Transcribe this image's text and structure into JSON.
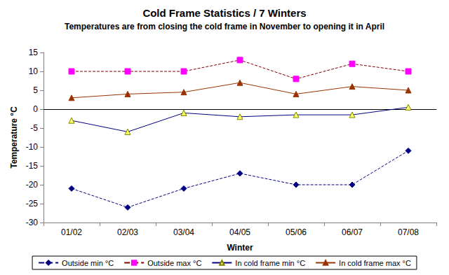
{
  "chart_data": {
    "type": "line",
    "title": "Cold Frame Statistics / 7 Winters",
    "subtitle": "Temperatures are from closing the cold frame in November to opening it in April",
    "x_label": "Winter",
    "y_label": "Temperature °C",
    "categories": [
      "01/02",
      "02/03",
      "03/04",
      "04/05",
      "05/06",
      "06/07",
      "07/08"
    ],
    "series": [
      {
        "name": "Outside min °C",
        "color": "#000080",
        "marker": "diamond",
        "line_style": "dashed",
        "values": [
          -21,
          -26,
          -21,
          -17,
          -20,
          -20,
          -11
        ]
      },
      {
        "name": "Outside max °C",
        "color": "#FF00FF",
        "marker": "square",
        "line_style": "dashed",
        "values": [
          10,
          10,
          10,
          13,
          8,
          12,
          10
        ]
      },
      {
        "name": "In cold frame min °C",
        "color": "#FFFF66",
        "marker": "triangle",
        "line_style": "solid",
        "values": [
          -3,
          -6,
          -1,
          -2,
          -1.5,
          -1.5,
          0.5
        ]
      },
      {
        "name": "In cold frame max °C",
        "color": "#993300",
        "marker": "triangle",
        "line_style": "solid",
        "values": [
          3,
          4,
          4.5,
          7,
          4,
          6,
          5
        ]
      }
    ],
    "ylim": [
      -30,
      15
    ],
    "yticks": [
      -30,
      -25,
      -20,
      -15,
      -10,
      -5,
      0,
      5,
      10,
      15
    ],
    "grid": false,
    "legend": "bottom"
  }
}
